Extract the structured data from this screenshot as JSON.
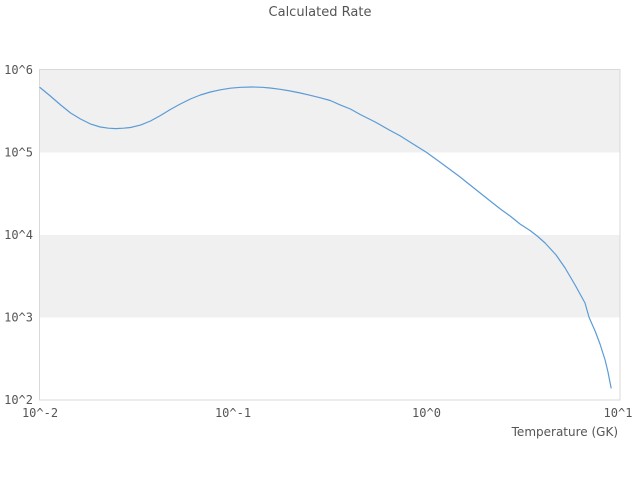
{
  "chart_data": {
    "type": "line",
    "title": "Calculated Rate",
    "xlabel": "Temperature (GK)",
    "ylabel": "",
    "x_scale": "log",
    "y_scale": "log",
    "xlim": [
      0.01,
      10
    ],
    "ylim": [
      100,
      1000000
    ],
    "x_ticks": [
      "10^-2",
      "10^-1",
      "10^0",
      "10^1"
    ],
    "y_ticks": [
      "10^6",
      "10^5",
      "10^4",
      "10^3",
      "10^2"
    ],
    "grid": "alternating horizontal decade bands, no vertical gridlines",
    "legend": "none",
    "colors": {
      "line": "#5b9bd5",
      "band": "#f0f0f0",
      "border": "#d9d9d9",
      "text": "#555555",
      "background": "#ffffff"
    },
    "series": [
      {
        "name": "calculated-rate",
        "x": [
          0.01,
          0.0113,
          0.0128,
          0.0144,
          0.0162,
          0.0182,
          0.0205,
          0.0226,
          0.0246,
          0.027,
          0.0294,
          0.0331,
          0.0373,
          0.042,
          0.0472,
          0.0532,
          0.06,
          0.0675,
          0.0761,
          0.0857,
          0.0965,
          0.109,
          0.125,
          0.141,
          0.155,
          0.175,
          0.197,
          0.222,
          0.25,
          0.282,
          0.317,
          0.357,
          0.403,
          0.453,
          0.542,
          0.648,
          0.73,
          0.841,
          1.0,
          1.17,
          1.32,
          1.49,
          1.78,
          2.13,
          2.4,
          2.7,
          3.04,
          3.43,
          3.73,
          4.1,
          4.67,
          5.2,
          5.86,
          6.59,
          6.92,
          7.43,
          7.88,
          8.37,
          8.67,
          8.99
        ],
        "y": [
          613000,
          484000,
          376000,
          301000,
          255000,
          222000,
          204000,
          197000,
          195000,
          197000,
          201000,
          215000,
          241000,
          281000,
          332000,
          387000,
          445000,
          498000,
          541000,
          575000,
          601000,
          617000,
          622000,
          617000,
          605000,
          583000,
          556000,
          526000,
          493000,
          460000,
          427000,
          378000,
          337000,
          289000,
          234000,
          185000,
          159000,
          129000,
          100000,
          76700,
          62200,
          50400,
          36100,
          25800,
          20700,
          17000,
          13600,
          11300,
          9730,
          8000,
          5720,
          3980,
          2480,
          1500,
          1000,
          686,
          477,
          305,
          218,
          140
        ]
      }
    ]
  }
}
